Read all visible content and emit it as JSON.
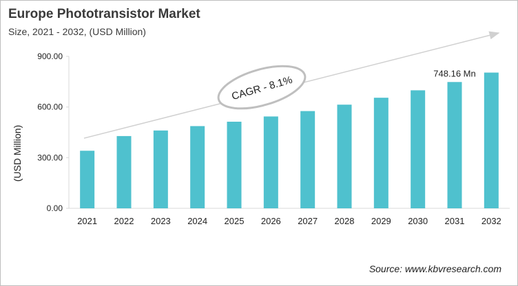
{
  "header": {
    "title": "Europe Phototransistor Market",
    "subtitle": "Size, 2021 - 2032, (USD Million)"
  },
  "source": "Source: www.kbvresearch.com",
  "chart_data": {
    "type": "bar",
    "title": "Europe Phototransistor Market",
    "subtitle": "Size, 2021 - 2032, (USD Million)",
    "xlabel": "",
    "ylabel": "(USD Million)",
    "ylim": [
      0,
      900
    ],
    "yticks": [
      0,
      300,
      600,
      900
    ],
    "ytick_labels": [
      "0.00",
      "300.00",
      "600.00",
      "900.00"
    ],
    "categories": [
      "2021",
      "2022",
      "2023",
      "2024",
      "2025",
      "2026",
      "2027",
      "2028",
      "2029",
      "2030",
      "2031",
      "2032"
    ],
    "values": [
      341,
      428,
      461,
      487,
      513,
      544,
      576,
      614,
      655,
      699,
      748.16,
      804
    ],
    "bar_color": "#4fc1ce",
    "grid": false,
    "annotations": [
      {
        "text": "748.16 Mn",
        "category": "2031"
      },
      {
        "text": "CAGR - 8.1%",
        "kind": "trend-arrow-ellipse"
      }
    ]
  }
}
